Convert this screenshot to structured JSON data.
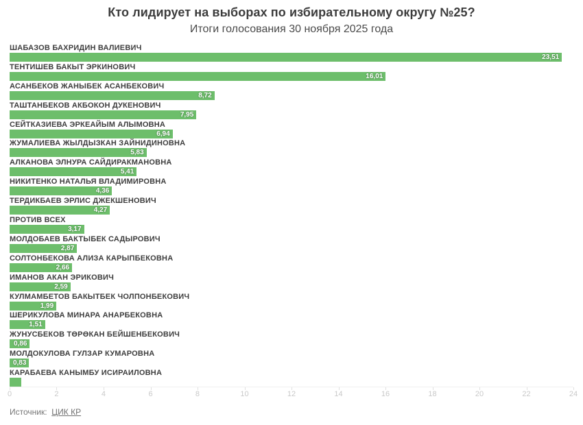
{
  "header": {
    "title": "Кто лидирует на выборах по избирательному округу №25?",
    "subtitle": "Итоги голосования 30 ноября 2025 года"
  },
  "footer": {
    "source_label": "Источник:",
    "source_link": "ЦИК КР"
  },
  "colors": {
    "bar": "#6dbe6b",
    "bar_value_text": "#ffffff",
    "name_text": "#3d3d3d",
    "axis_label": "#c9c9c9",
    "background": "#ffffff"
  },
  "chart_data": {
    "type": "bar",
    "orientation": "horizontal",
    "title": "Кто лидирует на выборах по избирательному округу №25?",
    "subtitle": "Итоги голосования 30 ноября 2025 года",
    "xlabel": "",
    "ylabel": "",
    "xlim": [
      0,
      24
    ],
    "grid": false,
    "legend": false,
    "categories": [
      "ШАБАЗОВ БАХРИДИН ВАЛИЕВИЧ",
      "ТЕНТИШЕВ БАКЫТ ЭРКИНОВИЧ",
      "АСАНБЕКОВ ЖАНЫБЕК АСАНБЕКОВИЧ",
      "ТАШТАНБЕКОВ АКБОКОН ДУКЕНОВИЧ",
      "СЕЙТКАЗИЕВА ЭРКЕАЙЫМ АЛЫМОВНА",
      "ЖУМАЛИЕВА ЖЫЛДЫЗКАН ЗАЙНИДИНОВНА",
      "АЛКАНОВА ЭЛНУРА САЙДИРАКМАНОВНА",
      "НИКИТЕНКО НАТАЛЬЯ ВЛАДИМИРОВНА",
      "ТЕРДИКБАЕВ ЭРЛИС ДЖЕКШЕНОВИЧ",
      "ПРОТИВ ВСЕХ",
      "МОЛДОБАЕВ БАКТЫБЕК САДЫРОВИЧ",
      "СОЛТОНБЕКОВА АЛИЗА КАРЫПБЕКОВНА",
      "ИМАНОВ АКАН ЭРИКОВИЧ",
      "КУЛМАМБЕТОВ БАКЫТБЕК ЧОЛПОНБЕКОВИЧ",
      "ШЕРИКУЛОВА МИНАРА АНАРБЕКОВНА",
      "ЖУНУСБЕКОВ ТӨРӨКАН БЕЙШЕНБЕКОВИЧ",
      "МОЛДОКУЛОВА ГУЛЗАР КУМАРОВНА",
      "КАРАБАЕВА КАНЫМБУ ИСИРАИЛОВНА"
    ],
    "values": [
      23.51,
      16.01,
      8.72,
      7.95,
      6.94,
      5.83,
      5.41,
      4.36,
      4.27,
      3.17,
      2.87,
      2.66,
      2.59,
      1.99,
      1.51,
      0.86,
      0.83,
      0.5
    ],
    "value_labels": [
      "23,51",
      "16,01",
      "8,72",
      "7,95",
      "6,94",
      "5,83",
      "5,41",
      "4,36",
      "4,27",
      "3,17",
      "2,87",
      "2,66",
      "2,59",
      "1,99",
      "1,51",
      "0,86",
      "0,83",
      ""
    ],
    "x_ticks": [
      0,
      2,
      4,
      6,
      8,
      10,
      12,
      14,
      16,
      18,
      20,
      22,
      24
    ]
  }
}
